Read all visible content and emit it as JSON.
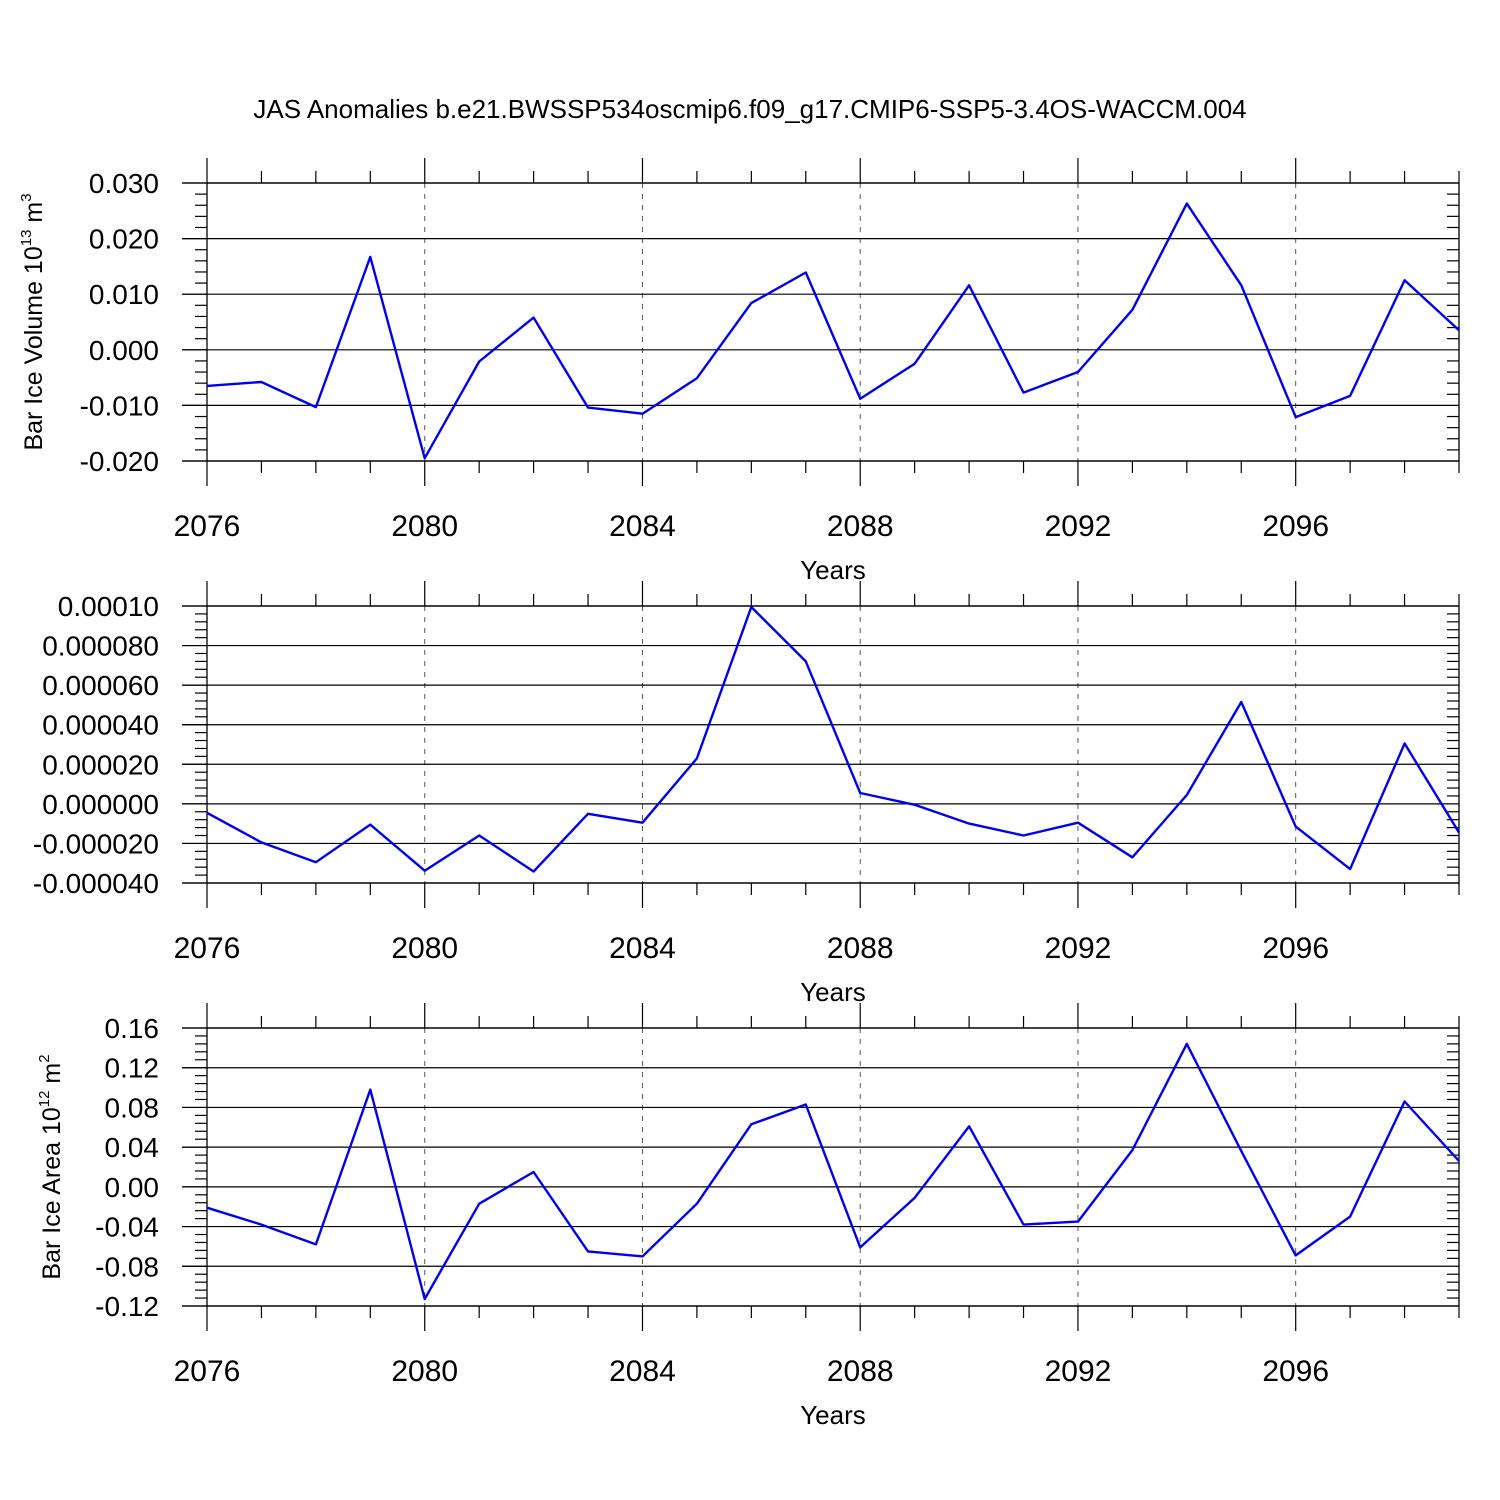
{
  "title": "JAS Anomalies b.e21.BWSSP534oscmip6.f09_g17.CMIP6-SSP5-3.4OS-WACCM.004",
  "chart_data": [
    {
      "type": "line",
      "ylabel": "Bar Ice Volume 10",
      "ylabel_sup": "13",
      "ylabel_unit": " m",
      "ylabel_unit_sup": "3",
      "xlabel": "Years",
      "x": [
        2076,
        2077,
        2078,
        2079,
        2080,
        2081,
        2082,
        2083,
        2084,
        2085,
        2086,
        2087,
        2088,
        2089,
        2090,
        2091,
        2092,
        2093,
        2094,
        2095,
        2096,
        2097,
        2098,
        2099
      ],
      "values": [
        -0.0065,
        -0.0058,
        -0.0103,
        0.0167,
        -0.0195,
        -0.0021,
        0.0058,
        -0.0104,
        -0.0115,
        -0.0051,
        0.0084,
        0.0139,
        -0.0088,
        -0.0025,
        0.0116,
        -0.0077,
        -0.004,
        0.0072,
        0.0263,
        0.0116,
        -0.0121,
        -0.0083,
        0.0125,
        0.0035
      ],
      "ylim": [
        -0.02,
        0.03
      ],
      "xlim": [
        2076,
        2099
      ],
      "yticks": [
        -0.02,
        -0.01,
        0.0,
        0.01,
        0.02,
        0.03
      ],
      "ytick_labels": [
        "-0.020",
        "-0.010",
        "0.000",
        "0.010",
        "0.020",
        "0.030"
      ],
      "xticks": [
        2076,
        2080,
        2084,
        2088,
        2092,
        2096
      ],
      "xtick_labels": [
        "2076",
        "2080",
        "2084",
        "2088",
        "2092",
        "2096"
      ],
      "grid": "vertical dashed at labeled years",
      "color": "#0000ee"
    },
    {
      "type": "line",
      "ylabel": "",
      "xlabel": "Years",
      "x": [
        2076,
        2077,
        2078,
        2079,
        2080,
        2081,
        2082,
        2083,
        2084,
        2085,
        2086,
        2087,
        2088,
        2089,
        2090,
        2091,
        2092,
        2093,
        2094,
        2095,
        2096,
        2097,
        2098,
        2099
      ],
      "values": [
        -4.5e-06,
        -1.95e-05,
        -2.95e-05,
        -1.05e-05,
        -3.38e-05,
        -1.6e-05,
        -3.42e-05,
        -5e-06,
        -9.5e-06,
        2.3e-05,
        9.95e-05,
        7.2e-05,
        5.5e-06,
        -5e-07,
        -1e-05,
        -1.6e-05,
        -9.5e-06,
        -2.7e-05,
        4.5e-06,
        5.15e-05,
        -1.15e-05,
        -3.3e-05,
        3.05e-05,
        -1.45e-05
      ],
      "ylim": [
        -4e-05,
        0.0001
      ],
      "xlim": [
        2076,
        2099
      ],
      "yticks": [
        -4e-05,
        -2e-05,
        0.0,
        2e-05,
        4e-05,
        6e-05,
        8e-05,
        0.0001
      ],
      "ytick_labels": [
        "-0.000040",
        "-0.000020",
        "0.000000",
        "0.000020",
        "0.000040",
        "0.000060",
        "0.000080",
        "0.00010"
      ],
      "xticks": [
        2076,
        2080,
        2084,
        2088,
        2092,
        2096
      ],
      "xtick_labels": [
        "2076",
        "2080",
        "2084",
        "2088",
        "2092",
        "2096"
      ],
      "grid": "vertical dashed at labeled years",
      "color": "#0000ee"
    },
    {
      "type": "line",
      "ylabel": "Bar Ice Area 10",
      "ylabel_sup": "12",
      "ylabel_unit": " m",
      "ylabel_unit_sup": "2",
      "xlabel": "Years",
      "x": [
        2076,
        2077,
        2078,
        2079,
        2080,
        2081,
        2082,
        2083,
        2084,
        2085,
        2086,
        2087,
        2088,
        2089,
        2090,
        2091,
        2092,
        2093,
        2094,
        2095,
        2096,
        2097,
        2098,
        2099
      ],
      "values": [
        -0.021,
        -0.038,
        -0.058,
        0.098,
        -0.113,
        -0.017,
        0.015,
        -0.065,
        -0.07,
        -0.017,
        0.063,
        0.083,
        -0.061,
        -0.011,
        0.061,
        -0.038,
        -0.035,
        0.037,
        0.144,
        0.036,
        -0.069,
        -0.03,
        0.086,
        0.026
      ],
      "ylim": [
        -0.12,
        0.16
      ],
      "xlim": [
        2076,
        2099
      ],
      "yticks": [
        -0.12,
        -0.08,
        -0.04,
        0.0,
        0.04,
        0.08,
        0.12,
        0.16
      ],
      "ytick_labels": [
        "-0.12",
        "-0.08",
        "-0.04",
        "0.00",
        "0.04",
        "0.08",
        "0.12",
        "0.16"
      ],
      "xticks": [
        2076,
        2080,
        2084,
        2088,
        2092,
        2096
      ],
      "xtick_labels": [
        "2076",
        "2080",
        "2084",
        "2088",
        "2092",
        "2096"
      ],
      "grid": "vertical dashed at labeled years",
      "color": "#0000ee"
    }
  ]
}
